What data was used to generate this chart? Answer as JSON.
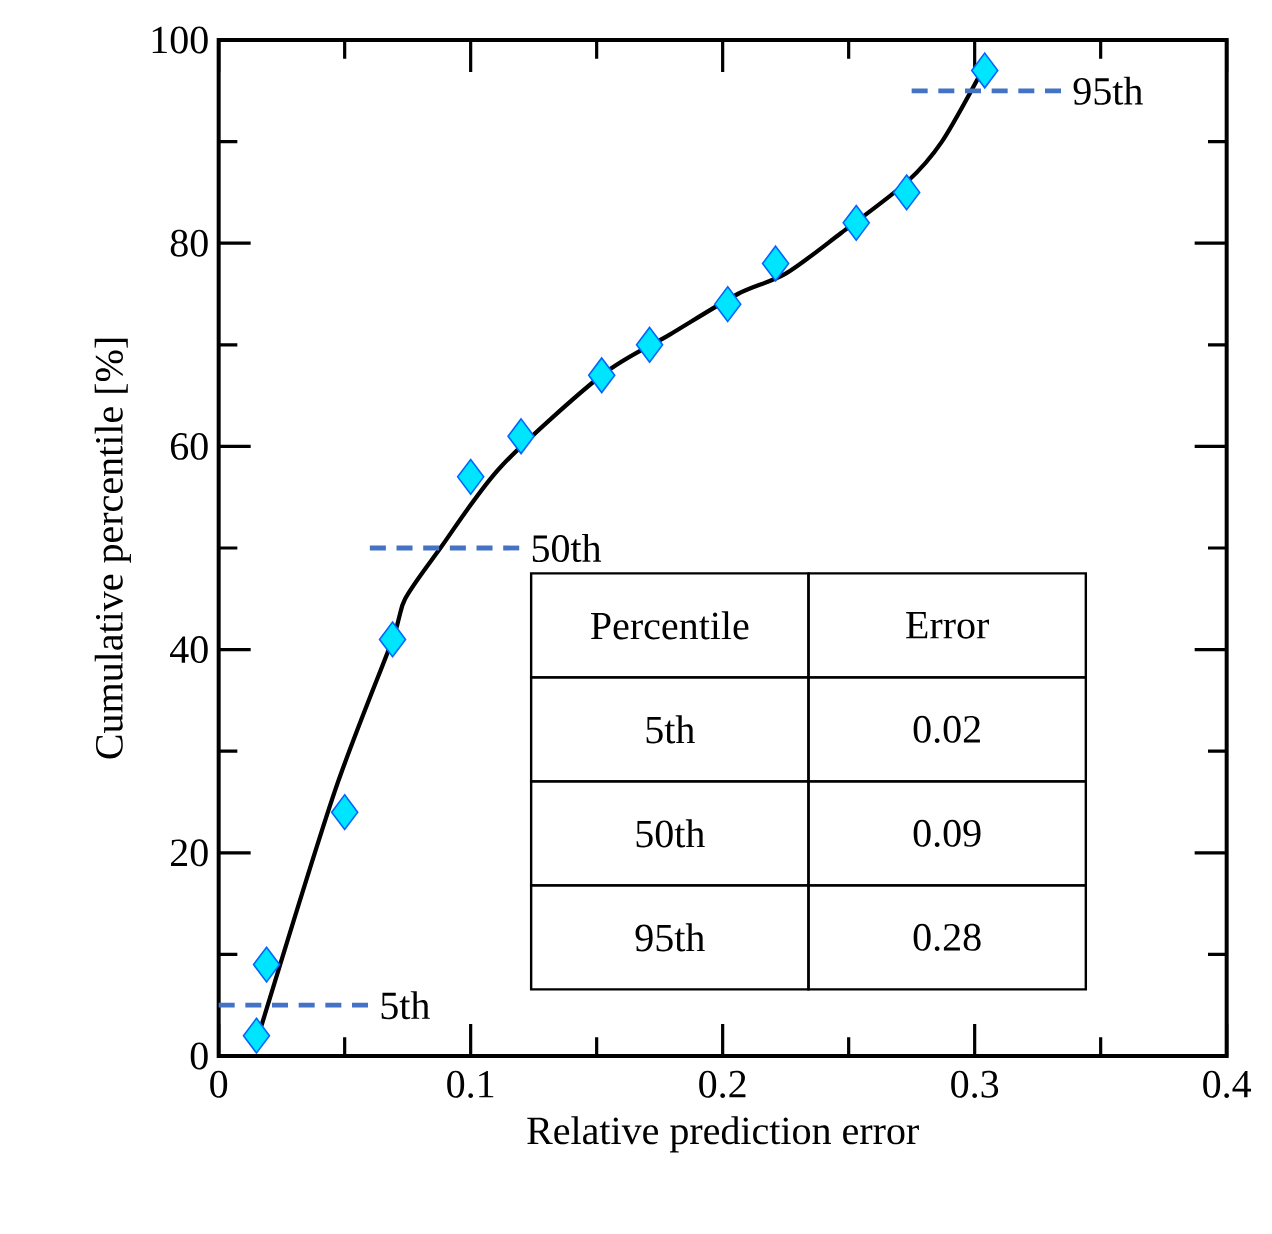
{
  "chart_data": {
    "type": "scatter",
    "xlabel": "Relative prediction error",
    "ylabel": "Cumulative percentile [%]",
    "xlim": [
      0,
      0.4
    ],
    "ylim": [
      0,
      100
    ],
    "xticks": [
      0,
      0.1,
      0.2,
      0.3,
      0.4
    ],
    "yticks": [
      0,
      20,
      40,
      60,
      80,
      100
    ],
    "grid": false,
    "series": [
      {
        "marker": "diamond",
        "color": "#00e5ff",
        "x": [
          0.015,
          0.019,
          0.05,
          0.069,
          0.1,
          0.12,
          0.152,
          0.171,
          0.202,
          0.221,
          0.253,
          0.273,
          0.304
        ],
        "values": [
          2,
          9,
          24,
          41,
          57,
          61,
          67,
          70,
          74,
          78,
          82,
          85,
          97
        ]
      },
      {
        "type": "line",
        "marker": "none",
        "line_style": "solid",
        "color": "#000000",
        "x": [
          0.017,
          0.046,
          0.069,
          0.074,
          0.088,
          0.112,
          0.152,
          0.179,
          0.206,
          0.225,
          0.247,
          0.273,
          0.287,
          0.303
        ],
        "values": [
          3,
          26,
          41,
          45,
          50,
          58,
          67,
          71,
          75,
          77,
          81,
          86,
          90,
          97
        ]
      },
      {
        "type": "line",
        "name": "5th",
        "marker": "none",
        "line_style": "dashed",
        "color": "#4472c4",
        "x": [
          0,
          0.06
        ],
        "values": [
          5,
          5
        ]
      },
      {
        "type": "line",
        "name": "50th",
        "marker": "none",
        "line_style": "dashed",
        "color": "#4472c4",
        "x": [
          0.06,
          0.12
        ],
        "values": [
          50,
          50
        ]
      },
      {
        "type": "line",
        "name": "95th",
        "marker": "none",
        "line_style": "dashed",
        "color": "#4472c4",
        "x": [
          0.275,
          0.335
        ],
        "values": [
          95,
          95
        ]
      }
    ],
    "annotations": [
      "Percentile",
      "Error",
      "5th",
      "0.02",
      "50th",
      "0.09",
      "95th",
      "0.28"
    ]
  }
}
